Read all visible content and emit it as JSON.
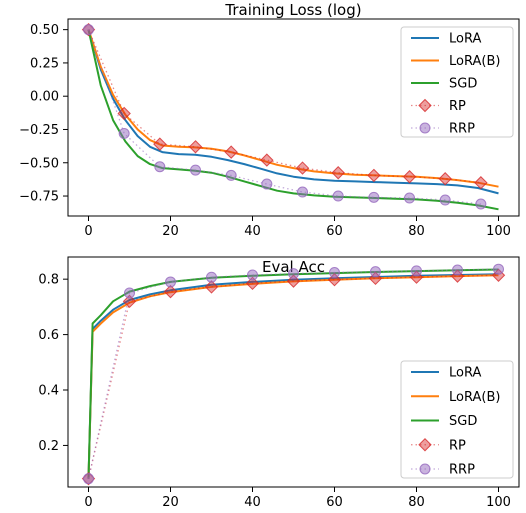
{
  "chart_data": [
    {
      "type": "line",
      "title": "Training Loss (log)",
      "xlabel": "",
      "ylabel": "",
      "xlim": [
        -5,
        105
      ],
      "ylim": [
        -0.9,
        0.58
      ],
      "xticks": [
        0,
        20,
        40,
        60,
        80,
        100
      ],
      "xtick_labels": [
        "0",
        "20",
        "40",
        "60",
        "80",
        "100"
      ],
      "yticks": [
        0.5,
        0.25,
        0.0,
        -0.25,
        -0.5,
        -0.75
      ],
      "ytick_labels": [
        "0.50",
        "0.25",
        "0.00",
        "−0.25",
        "−0.50",
        "−0.75"
      ],
      "legend_position": "top-right",
      "grid": false,
      "series": [
        {
          "name": "LoRA",
          "style": "line",
          "color": "#1f77b4",
          "x": [
            0,
            3,
            6,
            9,
            12,
            15,
            18,
            22,
            26,
            30,
            34,
            38,
            42,
            46,
            50,
            55,
            60,
            65,
            70,
            75,
            80,
            85,
            90,
            95,
            100
          ],
          "y": [
            0.5,
            0.2,
            -0.02,
            -0.18,
            -0.3,
            -0.38,
            -0.42,
            -0.435,
            -0.44,
            -0.455,
            -0.48,
            -0.51,
            -0.545,
            -0.58,
            -0.605,
            -0.625,
            -0.635,
            -0.64,
            -0.645,
            -0.65,
            -0.655,
            -0.66,
            -0.67,
            -0.69,
            -0.73
          ]
        },
        {
          "name": "LoRA(B)",
          "style": "line",
          "color": "#ff7f0e",
          "x": [
            0,
            3,
            6,
            9,
            12,
            15,
            18,
            22,
            26,
            30,
            34,
            38,
            42,
            46,
            50,
            55,
            60,
            65,
            70,
            75,
            80,
            85,
            90,
            95,
            100
          ],
          "y": [
            0.5,
            0.22,
            0.01,
            -0.14,
            -0.25,
            -0.33,
            -0.37,
            -0.38,
            -0.385,
            -0.395,
            -0.415,
            -0.445,
            -0.48,
            -0.515,
            -0.54,
            -0.565,
            -0.58,
            -0.59,
            -0.595,
            -0.6,
            -0.605,
            -0.615,
            -0.63,
            -0.65,
            -0.68
          ]
        },
        {
          "name": "SGD",
          "style": "line",
          "color": "#2ca02c",
          "x": [
            0,
            3,
            6,
            9,
            12,
            15,
            18,
            22,
            26,
            30,
            34,
            38,
            42,
            46,
            50,
            55,
            60,
            65,
            70,
            75,
            80,
            85,
            90,
            95,
            100
          ],
          "y": [
            0.5,
            0.08,
            -0.18,
            -0.34,
            -0.45,
            -0.51,
            -0.54,
            -0.55,
            -0.56,
            -0.575,
            -0.605,
            -0.64,
            -0.675,
            -0.71,
            -0.73,
            -0.745,
            -0.755,
            -0.76,
            -0.765,
            -0.77,
            -0.775,
            -0.785,
            -0.8,
            -0.82,
            -0.85
          ]
        },
        {
          "name": "RP",
          "style": "markers",
          "color": "#d62728",
          "marker": "diamond",
          "x": [
            0,
            8.7,
            17.4,
            26.1,
            34.8,
            43.5,
            52.2,
            60.9,
            69.6,
            78.3,
            87.0,
            95.7
          ],
          "y": [
            0.5,
            -0.13,
            -0.36,
            -0.38,
            -0.42,
            -0.48,
            -0.54,
            -0.575,
            -0.595,
            -0.605,
            -0.62,
            -0.65
          ]
        },
        {
          "name": "RRP",
          "style": "markers",
          "color": "#9467bd",
          "marker": "circle",
          "x": [
            0,
            8.7,
            17.4,
            26.1,
            34.8,
            43.5,
            52.2,
            60.9,
            69.6,
            78.3,
            87.0,
            95.7
          ],
          "y": [
            0.5,
            -0.28,
            -0.53,
            -0.555,
            -0.595,
            -0.66,
            -0.72,
            -0.75,
            -0.76,
            -0.765,
            -0.78,
            -0.81
          ]
        }
      ]
    },
    {
      "type": "line",
      "title": "Eval Acc",
      "xlabel": "",
      "ylabel": "",
      "xlim": [
        -5,
        105
      ],
      "ylim": [
        0.05,
        0.88
      ],
      "xticks": [
        0,
        20,
        40,
        60,
        80,
        100
      ],
      "xtick_labels": [
        "0",
        "20",
        "40",
        "60",
        "80",
        "100"
      ],
      "yticks": [
        0.8,
        0.6,
        0.4,
        0.2
      ],
      "ytick_labels": [
        "0.8",
        "0.6",
        "0.4",
        "0.2"
      ],
      "legend_position": "lower-right",
      "grid": false,
      "series": [
        {
          "name": "LoRA",
          "style": "line",
          "color": "#1f77b4",
          "x": [
            0,
            1,
            3,
            6,
            10,
            15,
            20,
            30,
            40,
            50,
            60,
            70,
            80,
            90,
            100
          ],
          "y": [
            0.08,
            0.62,
            0.65,
            0.69,
            0.725,
            0.745,
            0.76,
            0.78,
            0.79,
            0.798,
            0.803,
            0.808,
            0.812,
            0.815,
            0.818
          ]
        },
        {
          "name": "LoRA(B)",
          "style": "line",
          "color": "#ff7f0e",
          "x": [
            0,
            1,
            3,
            6,
            10,
            15,
            20,
            30,
            40,
            50,
            60,
            70,
            80,
            90,
            100
          ],
          "y": [
            0.08,
            0.61,
            0.64,
            0.68,
            0.715,
            0.738,
            0.753,
            0.772,
            0.783,
            0.792,
            0.798,
            0.803,
            0.807,
            0.811,
            0.814
          ]
        },
        {
          "name": "SGD",
          "style": "line",
          "color": "#2ca02c",
          "x": [
            0,
            1,
            3,
            6,
            10,
            15,
            20,
            30,
            40,
            50,
            60,
            70,
            80,
            90,
            100
          ],
          "y": [
            0.08,
            0.64,
            0.67,
            0.72,
            0.755,
            0.775,
            0.79,
            0.805,
            0.812,
            0.818,
            0.822,
            0.826,
            0.829,
            0.832,
            0.835
          ]
        },
        {
          "name": "RP",
          "style": "markers",
          "color": "#d62728",
          "marker": "diamond",
          "x": [
            0,
            10,
            20,
            30,
            40,
            50,
            60,
            70,
            80,
            90,
            100
          ],
          "y": [
            0.08,
            0.72,
            0.755,
            0.772,
            0.785,
            0.793,
            0.798,
            0.803,
            0.807,
            0.811,
            0.814
          ]
        },
        {
          "name": "RRP",
          "style": "markers",
          "color": "#9467bd",
          "marker": "circle",
          "x": [
            0,
            10,
            20,
            30,
            40,
            50,
            60,
            70,
            80,
            90,
            100
          ],
          "y": [
            0.08,
            0.75,
            0.79,
            0.807,
            0.815,
            0.82,
            0.824,
            0.827,
            0.83,
            0.833,
            0.836
          ]
        }
      ]
    }
  ]
}
